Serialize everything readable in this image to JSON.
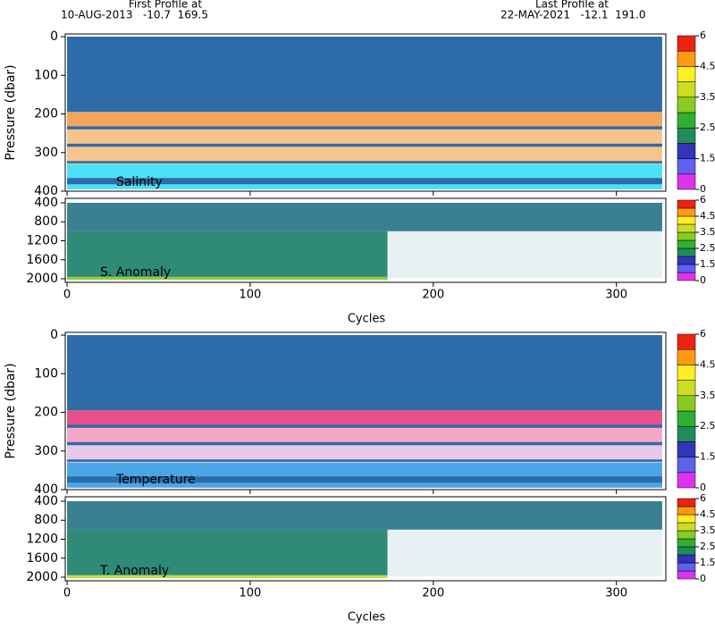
{
  "header": {
    "first_title": "First Profile at",
    "first_info": "10-AUG-2013   -10.7  169.5",
    "last_title": "Last Profile at",
    "last_info": "22-MAY-2021   -12.1  191.0"
  },
  "colorbar": {
    "bounds": [
      0,
      1,
      1.5,
      2,
      2.5,
      3,
      3.5,
      4,
      4.5,
      5,
      6
    ],
    "colors": [
      "#dd33ee",
      "#6060ee",
      "#3333bb",
      "#1f8c5a",
      "#30b030",
      "#88cc22",
      "#ccdd22",
      "#ffee22",
      "#ff9911",
      "#ee2211"
    ],
    "ticks": [
      0,
      1.5,
      2.5,
      3.5,
      4.5,
      6
    ]
  },
  "chart_data": [
    {
      "type": "profile",
      "label": "Salinity",
      "ylabel": "Pressure (dbar)",
      "xlim": [
        -1,
        327
      ],
      "xticks": [
        0,
        100,
        200,
        300
      ],
      "ylim": [
        -7,
        400
      ],
      "yticks": [
        0,
        100,
        200,
        300,
        400
      ],
      "regions": [
        {
          "x": [
            0,
            325
          ],
          "p": [
            0,
            195
          ],
          "color": "#2d6ca8"
        },
        {
          "x": [
            0,
            325
          ],
          "p": [
            195,
            240
          ],
          "color": "#f5a45c"
        },
        {
          "x": [
            0,
            325
          ],
          "p": [
            240,
            330
          ],
          "color": "#f8c48a"
        },
        {
          "x": [
            0,
            325
          ],
          "p": [
            330,
            395
          ],
          "color": "#4ee0f5"
        },
        {
          "x": [
            0,
            325
          ],
          "p": [
            232,
            240
          ],
          "color": "#2d6ca8"
        },
        {
          "x": [
            0,
            325
          ],
          "p": [
            277,
            285
          ],
          "color": "#2d6ca8"
        },
        {
          "x": [
            0,
            325
          ],
          "p": [
            322,
            328
          ],
          "color": "#2d6ca8"
        },
        {
          "x": [
            0,
            325
          ],
          "p": [
            366,
            382
          ],
          "color": "#2d6ca8"
        }
      ]
    },
    {
      "type": "profile",
      "label": "S. Anomaly",
      "xlabel": "Cycles",
      "xlim": [
        -1,
        327
      ],
      "xticks": [
        0,
        100,
        200,
        300
      ],
      "ylim": [
        306,
        2075
      ],
      "yticks": [
        400,
        800,
        1200,
        1600,
        2000
      ],
      "regions": [
        {
          "x": [
            0,
            325
          ],
          "p": [
            400,
            1000
          ],
          "color": "#3a7f92"
        },
        {
          "x": [
            0,
            175
          ],
          "p": [
            1000,
            1960
          ],
          "color": "#2f8a78"
        },
        {
          "x": [
            0,
            175
          ],
          "p": [
            1960,
            2020
          ],
          "color": "#8ccd3a"
        },
        {
          "x": [
            175,
            325
          ],
          "p": [
            1000,
            1980
          ],
          "color": "#e8f0f4"
        }
      ]
    },
    {
      "type": "profile",
      "label": "Temperature",
      "ylabel": "Pressure (dbar)",
      "xlim": [
        -1,
        327
      ],
      "xticks": [
        0,
        100,
        200,
        300
      ],
      "ylim": [
        -7,
        400
      ],
      "yticks": [
        0,
        100,
        200,
        300,
        400
      ],
      "regions": [
        {
          "x": [
            0,
            325
          ],
          "p": [
            0,
            195
          ],
          "color": "#2d6ca8"
        },
        {
          "x": [
            0,
            325
          ],
          "p": [
            195,
            240
          ],
          "color": "#e8508a"
        },
        {
          "x": [
            0,
            325
          ],
          "p": [
            240,
            285
          ],
          "color": "#f3a6c6"
        },
        {
          "x": [
            0,
            325
          ],
          "p": [
            285,
            330
          ],
          "color": "#e6c8e8"
        },
        {
          "x": [
            0,
            325
          ],
          "p": [
            330,
            395
          ],
          "color": "#4aa6e6"
        },
        {
          "x": [
            0,
            325
          ],
          "p": [
            232,
            240
          ],
          "color": "#2d6ca8"
        },
        {
          "x": [
            0,
            325
          ],
          "p": [
            277,
            285
          ],
          "color": "#2d6ca8"
        },
        {
          "x": [
            0,
            325
          ],
          "p": [
            322,
            328
          ],
          "color": "#2d6ca8"
        },
        {
          "x": [
            0,
            325
          ],
          "p": [
            366,
            382
          ],
          "color": "#2d6ca8"
        }
      ]
    },
    {
      "type": "profile",
      "label": "T. Anomaly",
      "xlabel": "Cycles",
      "xlim": [
        -1,
        327
      ],
      "xticks": [
        0,
        100,
        200,
        300
      ],
      "ylim": [
        306,
        2075
      ],
      "yticks": [
        400,
        800,
        1200,
        1600,
        2000
      ],
      "regions": [
        {
          "x": [
            0,
            325
          ],
          "p": [
            400,
            1000
          ],
          "color": "#3a7f92"
        },
        {
          "x": [
            0,
            175
          ],
          "p": [
            1000,
            1960
          ],
          "color": "#2f8a78"
        },
        {
          "x": [
            0,
            175
          ],
          "p": [
            1960,
            2020
          ],
          "color": "#c8d840"
        },
        {
          "x": [
            175,
            325
          ],
          "p": [
            1000,
            1980
          ],
          "color": "#e8f0f4"
        }
      ]
    }
  ]
}
